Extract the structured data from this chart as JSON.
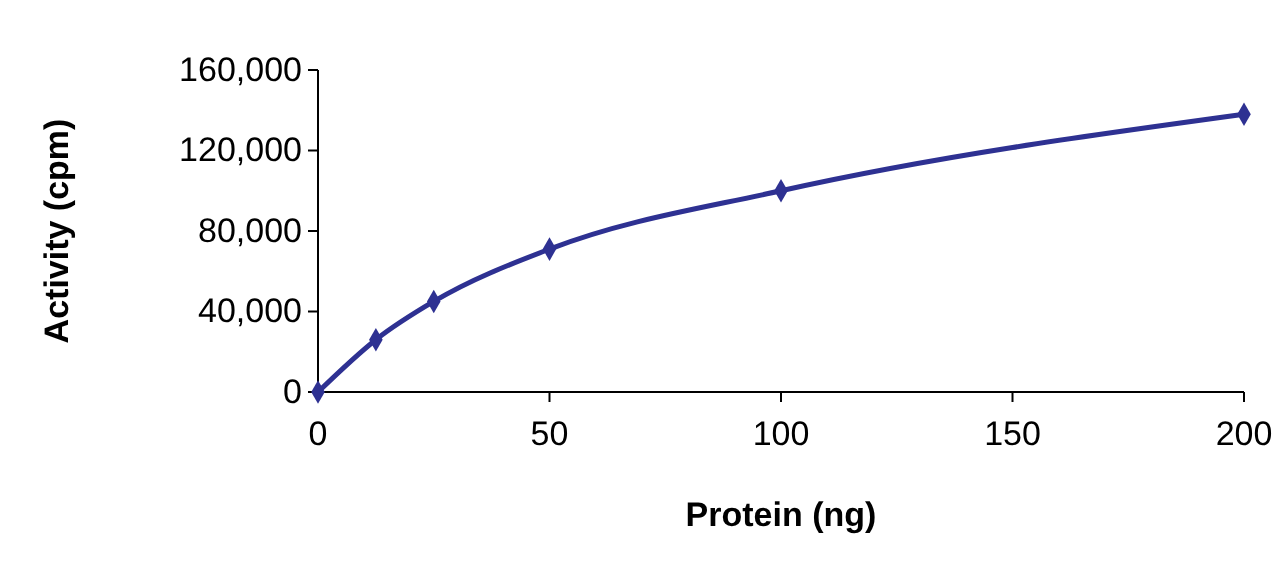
{
  "chart_data": {
    "type": "line",
    "xlabel": "Protein (ng)",
    "ylabel": "Activity (cpm)",
    "x": [
      0,
      12.5,
      25,
      50,
      100,
      200
    ],
    "series": [
      {
        "color": "#2e3192",
        "values": [
          0,
          26000,
          45000,
          71000,
          100000,
          138000
        ]
      }
    ],
    "xlim": [
      0,
      200
    ],
    "xticks": [
      0,
      50,
      100,
      150,
      200
    ],
    "ylim": [
      0,
      160000
    ],
    "yticks": [
      0,
      {
        "value": 40000,
        "label": "40,000"
      },
      {
        "value": 80000,
        "label": "80,000"
      },
      {
        "value": 120000,
        "label": "120,000"
      },
      {
        "value": 160000,
        "label": "160,000"
      }
    ],
    "grid": false,
    "marker": "diamond",
    "line_style": "solid"
  }
}
